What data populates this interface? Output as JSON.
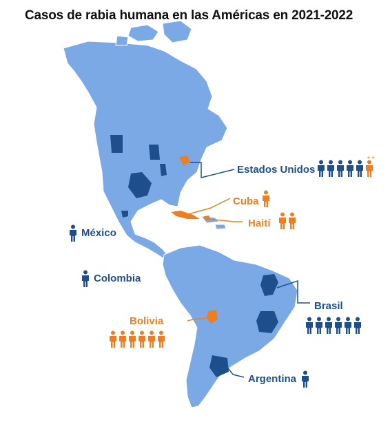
{
  "title": "Casos de rabia humana en las Américas en 2021-2022",
  "colors": {
    "land": "#7aa9e6",
    "land_stroke": "#ffffff",
    "highlight_blue": "#1f4e8c",
    "highlight_orange": "#ef7d22",
    "background": "#ffffff"
  },
  "legend_note": "* *",
  "countries": [
    {
      "id": "estados-unidos",
      "label": "Estados Unidos",
      "cases": 5,
      "case_color": "blue",
      "extra_orange": 1
    },
    {
      "id": "cuba",
      "label": "Cuba",
      "cases": 1,
      "case_color": "orange"
    },
    {
      "id": "haiti",
      "label": "Haití",
      "cases": 2,
      "case_color": "orange"
    },
    {
      "id": "mexico",
      "label": "México",
      "cases": 1,
      "case_color": "blue"
    },
    {
      "id": "colombia",
      "label": "Colombia",
      "cases": 1,
      "case_color": "blue"
    },
    {
      "id": "bolivia",
      "label": "Bolivia",
      "cases": 6,
      "case_color": "orange"
    },
    {
      "id": "brasil",
      "label": "Brasil",
      "cases": 6,
      "case_color": "blue"
    },
    {
      "id": "argentina",
      "label": "Argentina",
      "cases": 1,
      "case_color": "blue"
    }
  ]
}
